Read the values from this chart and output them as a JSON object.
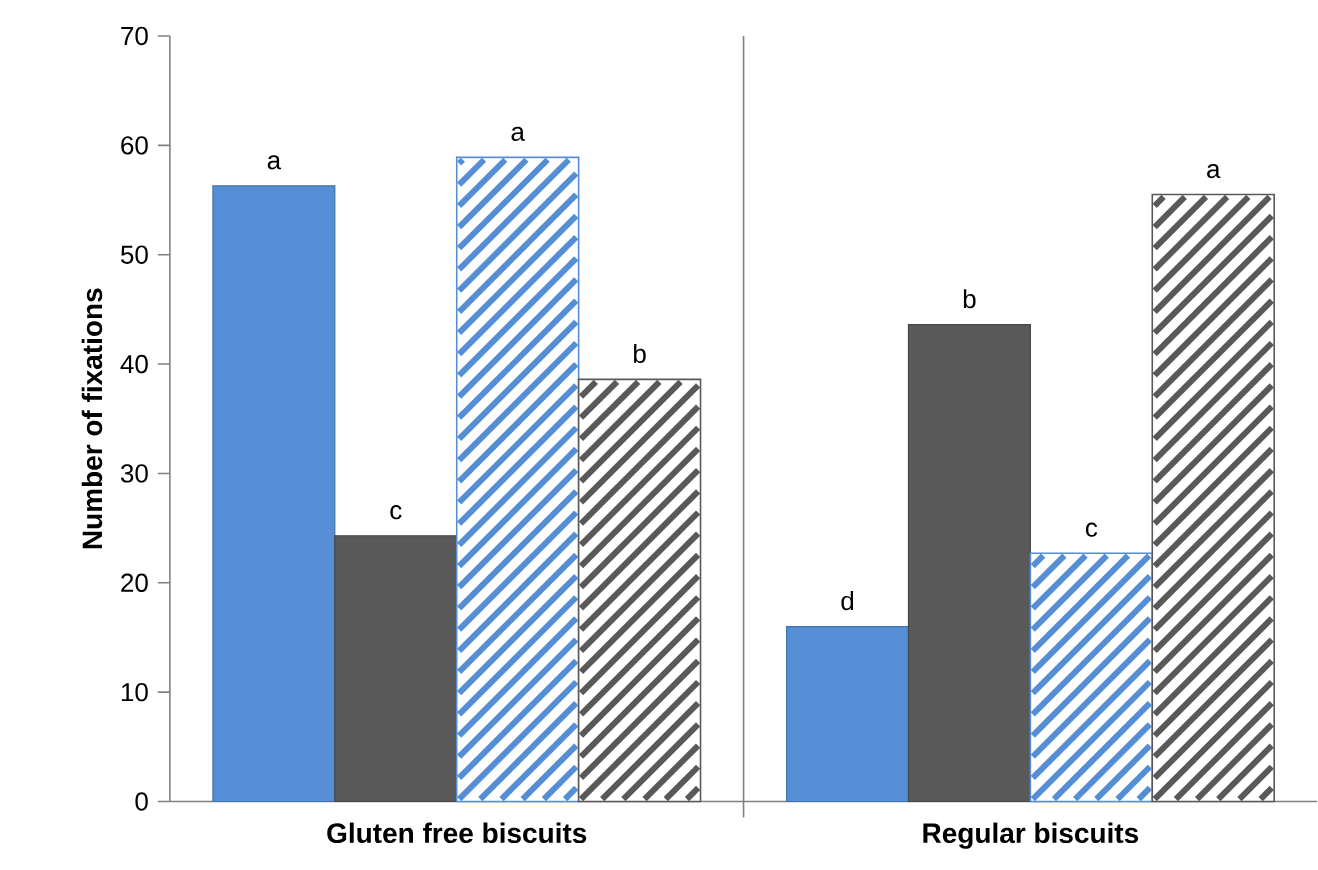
{
  "chart_data": {
    "type": "bar",
    "ylabel": "Number of fixations",
    "categories": [
      "Gluten free biscuits",
      "Regular biscuits"
    ],
    "series": [
      {
        "color": "#558ed5",
        "values": [
          56.3,
          16.0
        ]
      },
      {
        "color": "#595959",
        "values": [
          24.3,
          43.6
        ]
      },
      {
        "color": "#558ed5",
        "values": [
          58.9,
          22.7
        ]
      },
      {
        "color": "#595959",
        "values": [
          38.6,
          55.5
        ]
      }
    ],
    "ylim": [
      0,
      70
    ],
    "yticks": [
      0,
      10,
      20,
      30,
      40,
      50,
      60,
      70
    ],
    "annotations": [
      {
        "text": "a",
        "y": 56.3
      },
      {
        "text": "c",
        "y": 24.3
      },
      {
        "text": "a",
        "y": 58.9
      },
      {
        "text": "b",
        "y": 38.6
      },
      {
        "text": "d",
        "y": 16.0
      },
      {
        "text": "b",
        "y": 43.6
      },
      {
        "text": "c",
        "y": 22.7
      },
      {
        "text": "a",
        "y": 55.5
      }
    ]
  }
}
